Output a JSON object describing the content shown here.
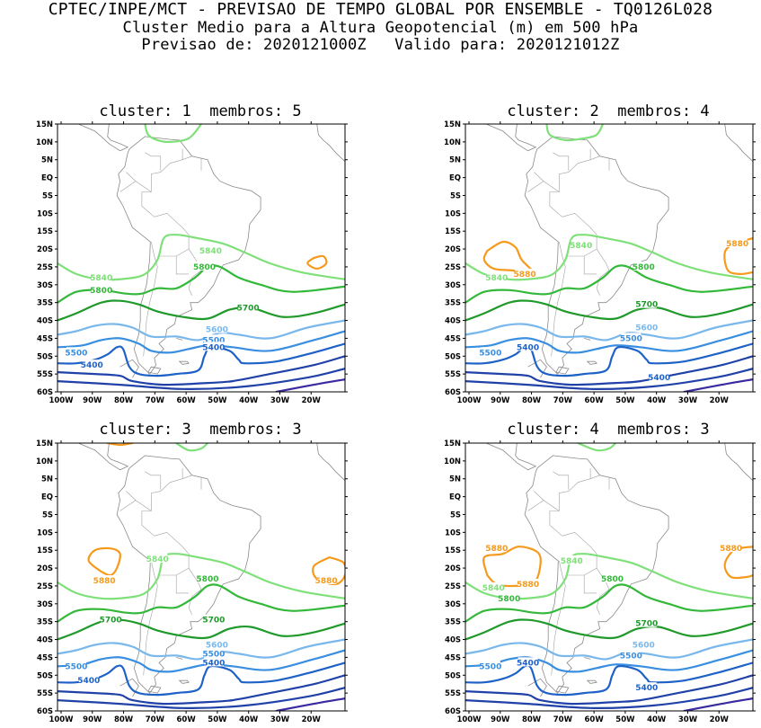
{
  "header": {
    "line1": "CPTEC/INPE/MCT - PREVISAO DE TEMPO GLOBAL POR ENSEMBLE - TQ0126L028",
    "line2": "Cluster Medio para a Altura Geopotencial (m) em 500 hPa",
    "line3": "Previsao de: 2020121000Z   Valido para: 2020121012Z"
  },
  "lat_labels": [
    "15N",
    "10N",
    "5N",
    "EQ",
    "5S",
    "10S",
    "15S",
    "20S",
    "25S",
    "30S",
    "35S",
    "40S",
    "45S",
    "50S",
    "55S",
    "60S"
  ],
  "lon_labels": [
    "100W",
    "90W",
    "80W",
    "70W",
    "60W",
    "50W",
    "40W",
    "30W",
    "20W"
  ],
  "colors": {
    "c5880": "#f59a1c",
    "c5840": "#7fe07a",
    "c5800": "#33b83a",
    "c5700": "#1f9a2a",
    "c5600": "#7ab8ec",
    "c5500": "#3a8ee0",
    "c5400": "#1e62c8",
    "deep1": "#2042a8",
    "deep2": "#3a2aa0",
    "coast": "#8a8a8a"
  },
  "panels": [
    {
      "title": "cluster: 1  membros: 5",
      "labels": {
        "l5880": "",
        "l5880b": "",
        "l5840": "5840",
        "l5840b": "5840",
        "l5800": "5800",
        "l5800b": "5800",
        "l5700": "5700",
        "l5600": "5600",
        "l5500": "5500",
        "l5500b": "5500",
        "l5400": "5400",
        "l5400b": "5400"
      }
    },
    {
      "title": "cluster: 2  membros: 4",
      "labels": {
        "l5880": "5880",
        "l5880b": "5880",
        "l5840": "5840",
        "l5840b": "5840",
        "l5800": "5800",
        "l5800b": "",
        "l5700": "5700",
        "l5600": "5600",
        "l5500": "5500",
        "l5500b": "5500",
        "l5400": "5400",
        "l5400b": "5400"
      }
    },
    {
      "title": "cluster: 3  membros: 3",
      "labels": {
        "l5880": "5880",
        "l5880b": "5880",
        "l5840": "5840",
        "l5840b": "",
        "l5800": "5800",
        "l5800b": "",
        "l5700": "5700",
        "l5700b": "5700",
        "l5600": "5600",
        "l5500": "5500",
        "l5500b": "5500",
        "l5400": "5400",
        "l5400b": "5400"
      }
    },
    {
      "title": "cluster: 4  membros: 3",
      "labels": {
        "l5880": "5880",
        "l5880b": "5880",
        "l5880c": "5880",
        "l5840": "5840",
        "l5840b": "5840",
        "l5800": "5800",
        "l5800b": "5800",
        "l5700": "5700",
        "l5600": "5600",
        "l5500": "5500",
        "l5500b": "5500",
        "l5400": "5400",
        "l5400b": "5400"
      }
    }
  ]
}
